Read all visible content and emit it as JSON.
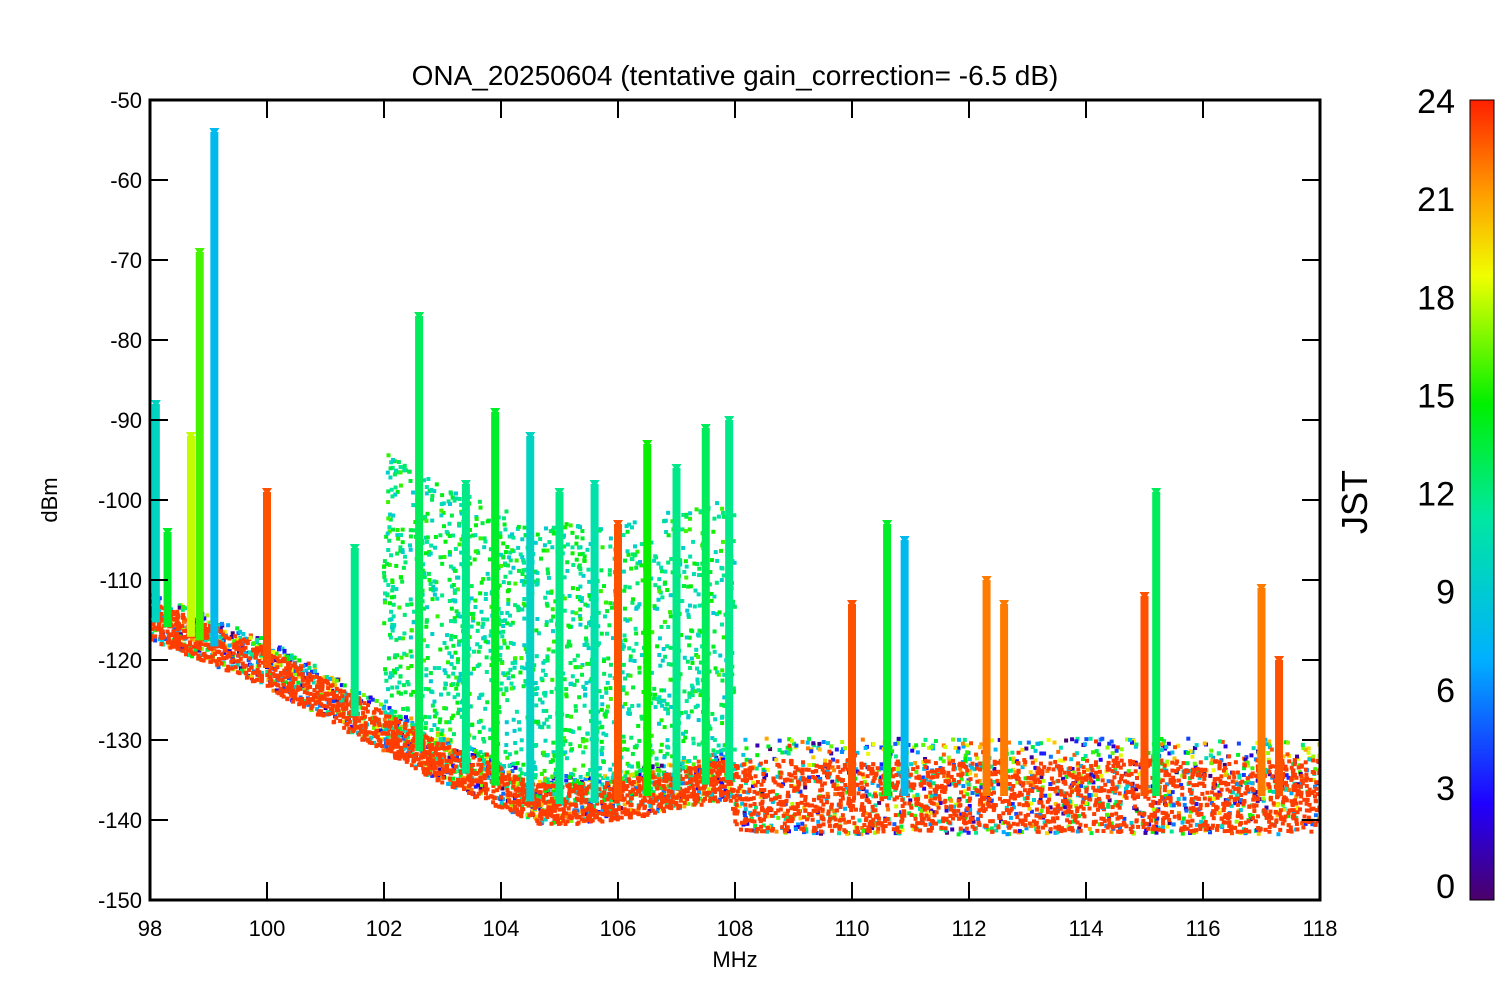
{
  "chart_data": {
    "type": "scatter",
    "title": "ONA_20250604 (tentative gain_correction= -6.5 dB)",
    "xlabel": "MHz",
    "ylabel": "dBm",
    "xlim": [
      98,
      118
    ],
    "ylim": [
      -150,
      -50
    ],
    "x_ticks": [
      "98",
      "100",
      "102",
      "104",
      "106",
      "108",
      "110",
      "112",
      "114",
      "116",
      "118"
    ],
    "y_ticks": [
      "-50",
      "-60",
      "-70",
      "-80",
      "-90",
      "-100",
      "-110",
      "-120",
      "-130",
      "-140",
      "-150"
    ],
    "colorbar": {
      "label": "JST",
      "range": [
        0,
        24
      ],
      "ticks": [
        "24",
        "21",
        "18",
        "15",
        "12",
        "9",
        "6",
        "3",
        "0"
      ],
      "colormap": "rainbow"
    },
    "noise_floor": [
      {
        "x": 98.0,
        "y": -115
      },
      {
        "x": 99.0,
        "y": -118
      },
      {
        "x": 100.0,
        "y": -121
      },
      {
        "x": 101.0,
        "y": -125
      },
      {
        "x": 102.0,
        "y": -129
      },
      {
        "x": 103.0,
        "y": -133
      },
      {
        "x": 104.0,
        "y": -136
      },
      {
        "x": 104.6,
        "y": -138
      },
      {
        "x": 105.5,
        "y": -138
      },
      {
        "x": 106.5,
        "y": -137
      },
      {
        "x": 107.9,
        "y": -135
      },
      {
        "x": 108.0,
        "y": -137
      },
      {
        "x": 118.0,
        "y": -137
      }
    ],
    "peaks": [
      {
        "x": 98.1,
        "y": -88,
        "jst": 10
      },
      {
        "x": 98.3,
        "y": -104,
        "jst": 14
      },
      {
        "x": 98.7,
        "y": -92,
        "jst": 18
      },
      {
        "x": 98.85,
        "y": -69,
        "jst": 16
      },
      {
        "x": 99.1,
        "y": -54,
        "jst": 8
      },
      {
        "x": 100.0,
        "y": -99,
        "jst": 23
      },
      {
        "x": 101.5,
        "y": -106,
        "jst": 12
      },
      {
        "x": 102.6,
        "y": -77,
        "jst": 13
      },
      {
        "x": 103.4,
        "y": -98,
        "jst": 12
      },
      {
        "x": 103.9,
        "y": -89,
        "jst": 14
      },
      {
        "x": 104.5,
        "y": -92,
        "jst": 10
      },
      {
        "x": 105.0,
        "y": -99,
        "jst": 12
      },
      {
        "x": 105.6,
        "y": -98,
        "jst": 11
      },
      {
        "x": 106.0,
        "y": -103,
        "jst": 23
      },
      {
        "x": 106.5,
        "y": -93,
        "jst": 15
      },
      {
        "x": 107.0,
        "y": -96,
        "jst": 12
      },
      {
        "x": 107.5,
        "y": -91,
        "jst": 13
      },
      {
        "x": 107.9,
        "y": -90,
        "jst": 12
      },
      {
        "x": 110.0,
        "y": -113,
        "jst": 23
      },
      {
        "x": 110.6,
        "y": -103,
        "jst": 14
      },
      {
        "x": 110.9,
        "y": -105,
        "jst": 8
      },
      {
        "x": 112.3,
        "y": -110,
        "jst": 22
      },
      {
        "x": 112.6,
        "y": -113,
        "jst": 22
      },
      {
        "x": 115.0,
        "y": -112,
        "jst": 23
      },
      {
        "x": 115.2,
        "y": -99,
        "jst": 13
      },
      {
        "x": 117.0,
        "y": -111,
        "jst": 22
      },
      {
        "x": 117.3,
        "y": -120,
        "jst": 23
      }
    ]
  }
}
